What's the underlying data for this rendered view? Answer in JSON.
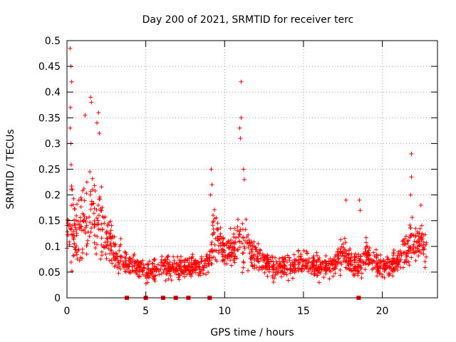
{
  "chart_data": {
    "type": "scatter",
    "title": "Day 200 of 2021, SRMTID for receiver terc",
    "xlabel": "GPS time / hours",
    "ylabel": "SRMTID / TECUs",
    "xlim": [
      0,
      23.5
    ],
    "ylim": [
      0,
      0.5
    ],
    "xticks": [
      0,
      5,
      10,
      15,
      20
    ],
    "xtick_labels": [
      "0",
      "5",
      "10",
      "15",
      "20"
    ],
    "yticks": [
      0,
      0.05,
      0.1,
      0.15,
      0.2,
      0.25,
      0.3,
      0.35,
      0.4,
      0.45,
      0.5
    ],
    "ytick_labels": [
      "0",
      "0.05",
      "0.1",
      "0.15",
      "0.2",
      "0.25",
      "0.3",
      "0.35",
      "0.4",
      "0.45",
      "0.5"
    ],
    "grid": true,
    "marker": "plus",
    "color": "#ff0000",
    "gap_markers_x": [
      3.8,
      5.0,
      6.1,
      6.9,
      7.7,
      9.05,
      18.5
    ],
    "series": [
      {
        "name": "SRMTID",
        "envelope_x": [
          0,
          0.3,
          0.6,
          1.0,
          1.5,
          2.0,
          2.5,
          3.0,
          3.5,
          4.0,
          4.5,
          5.0,
          5.5,
          6.0,
          6.5,
          7.0,
          7.5,
          8.0,
          8.5,
          9.0,
          9.3,
          9.7,
          10.0,
          10.5,
          11.0,
          11.3,
          11.7,
          12.0,
          12.5,
          13.0,
          13.5,
          14.0,
          14.5,
          15.0,
          15.5,
          16.0,
          16.5,
          17.0,
          17.5,
          18.0,
          18.5,
          19.0,
          19.5,
          20.0,
          20.5,
          21.0,
          21.5,
          22.0,
          22.5,
          22.8
        ],
        "envelope_mean": [
          0.11,
          0.16,
          0.13,
          0.13,
          0.17,
          0.14,
          0.12,
          0.09,
          0.07,
          0.065,
          0.06,
          0.05,
          0.05,
          0.06,
          0.06,
          0.06,
          0.06,
          0.06,
          0.06,
          0.07,
          0.12,
          0.11,
          0.09,
          0.1,
          0.11,
          0.12,
          0.09,
          0.08,
          0.07,
          0.06,
          0.06,
          0.06,
          0.065,
          0.07,
          0.065,
          0.06,
          0.06,
          0.065,
          0.1,
          0.07,
          0.06,
          0.08,
          0.07,
          0.06,
          0.06,
          0.07,
          0.1,
          0.11,
          0.11,
          0.09
        ],
        "envelope_spread": [
          0.04,
          0.08,
          0.06,
          0.06,
          0.07,
          0.07,
          0.05,
          0.035,
          0.025,
          0.02,
          0.02,
          0.02,
          0.02,
          0.02,
          0.02,
          0.02,
          0.02,
          0.02,
          0.02,
          0.02,
          0.05,
          0.03,
          0.03,
          0.03,
          0.05,
          0.05,
          0.03,
          0.025,
          0.02,
          0.02,
          0.02,
          0.02,
          0.02,
          0.02,
          0.02,
          0.02,
          0.02,
          0.02,
          0.04,
          0.02,
          0.02,
          0.03,
          0.02,
          0.02,
          0.02,
          0.02,
          0.03,
          0.04,
          0.03,
          0.03
        ],
        "peaks": [
          {
            "x": 0.2,
            "y": 0.485
          },
          {
            "x": 0.25,
            "y": 0.45
          },
          {
            "x": 0.3,
            "y": 0.42
          },
          {
            "x": 0.22,
            "y": 0.37
          },
          {
            "x": 0.2,
            "y": 0.33
          },
          {
            "x": 0.25,
            "y": 0.3
          },
          {
            "x": 1.15,
            "y": 0.355
          },
          {
            "x": 1.5,
            "y": 0.39
          },
          {
            "x": 1.55,
            "y": 0.38
          },
          {
            "x": 2.0,
            "y": 0.36
          },
          {
            "x": 1.9,
            "y": 0.34
          },
          {
            "x": 2.05,
            "y": 0.32
          },
          {
            "x": 9.15,
            "y": 0.25
          },
          {
            "x": 9.2,
            "y": 0.22
          },
          {
            "x": 9.1,
            "y": 0.2
          },
          {
            "x": 11.05,
            "y": 0.42
          },
          {
            "x": 11.05,
            "y": 0.35
          },
          {
            "x": 10.95,
            "y": 0.33
          },
          {
            "x": 11.0,
            "y": 0.31
          },
          {
            "x": 11.2,
            "y": 0.25
          },
          {
            "x": 11.25,
            "y": 0.23
          },
          {
            "x": 17.7,
            "y": 0.19
          },
          {
            "x": 18.55,
            "y": 0.19
          },
          {
            "x": 18.6,
            "y": 0.17
          },
          {
            "x": 21.85,
            "y": 0.28
          },
          {
            "x": 21.85,
            "y": 0.235
          },
          {
            "x": 21.8,
            "y": 0.2
          },
          {
            "x": 22.45,
            "y": 0.18
          }
        ]
      }
    ]
  }
}
